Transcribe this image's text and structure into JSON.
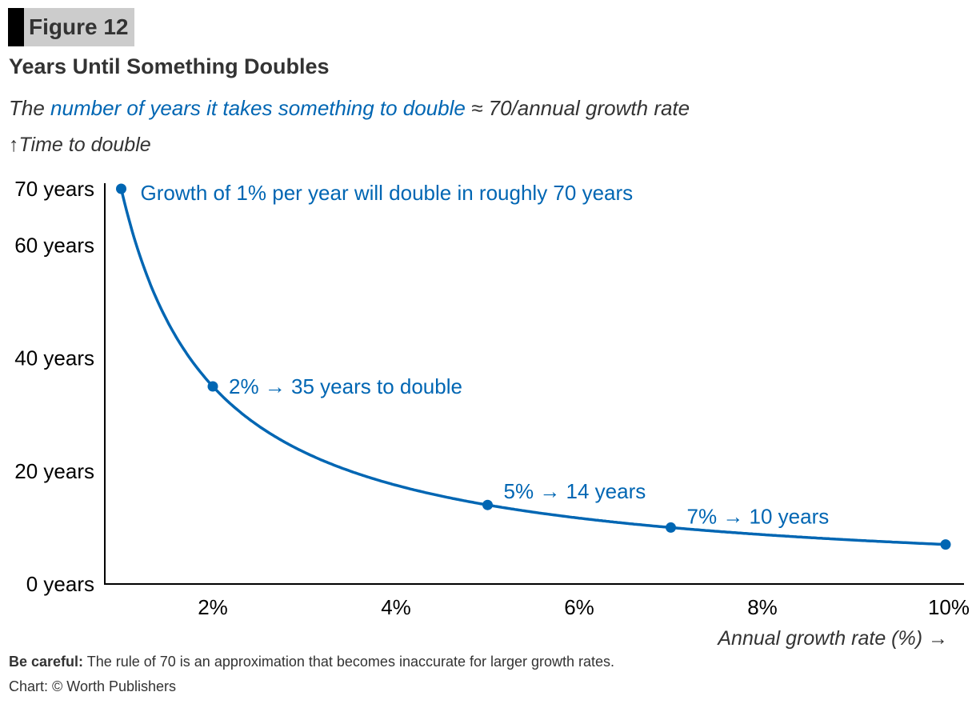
{
  "figure_label": "Figure 12",
  "title": "Years Until Something Doubles",
  "subtitle": {
    "pre": "The ",
    "highlight": "number of years it takes something to double",
    "post": " ≈ 70/annual growth rate"
  },
  "footer": {
    "note_bold": "Be careful:",
    "note": " The rule of 70 is an approximation that becomes inaccurate for larger growth rates.",
    "source": "Chart: © Worth Publishers"
  },
  "colors": {
    "series": "#0066b3",
    "text": "#333333",
    "axis": "#000000"
  },
  "chart_data": {
    "type": "line",
    "title": "Years Until Something Doubles",
    "ylabel": "↑Time to double",
    "xlabel": "Annual growth rate (%) →",
    "xlim": [
      0.83,
      10.1
    ],
    "ylim": [
      0,
      70
    ],
    "xticks": [
      {
        "value": 2,
        "label": "2%"
      },
      {
        "value": 4,
        "label": "4%"
      },
      {
        "value": 6,
        "label": "6%"
      },
      {
        "value": 8,
        "label": "8%"
      },
      {
        "value": 10,
        "label": "10%"
      }
    ],
    "yticks": [
      {
        "value": 0,
        "label": "0 years"
      },
      {
        "value": 20,
        "label": "20 years"
      },
      {
        "value": 40,
        "label": "40 years"
      },
      {
        "value": 60,
        "label": "60 years"
      },
      {
        "value": 70,
        "label": "70 years"
      }
    ],
    "grid": false,
    "curve": {
      "formula": "70/x",
      "x_range": [
        1,
        10
      ]
    },
    "points": [
      {
        "x": 1,
        "y": 70,
        "label": "Growth of 1% per year will double in roughly 70 years"
      },
      {
        "x": 2,
        "y": 35,
        "label": "2% → 35 years to double"
      },
      {
        "x": 5,
        "y": 14,
        "label": "5% → 14 years"
      },
      {
        "x": 7,
        "y": 10,
        "label": "7% → 10 years"
      },
      {
        "x": 10,
        "y": 7,
        "label": ""
      }
    ]
  }
}
